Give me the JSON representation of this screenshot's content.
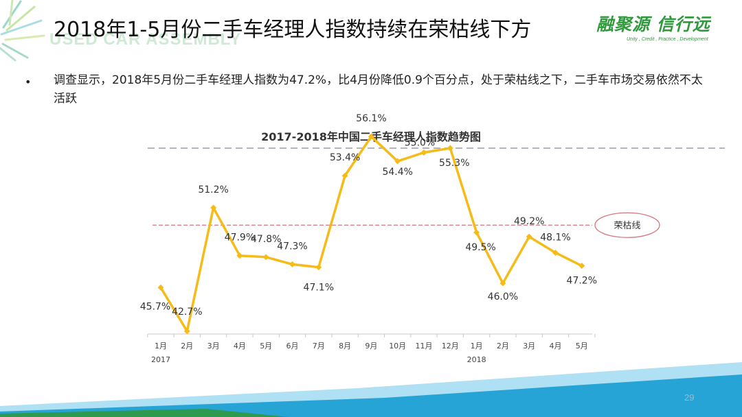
{
  "header": {
    "title": "2018年1-5月份二手车经理人指数持续在荣枯线下方",
    "watermark": "USED CAR ASSEMBLY",
    "logo_text": "融聚源 信行远",
    "logo_tagline": "Unity , Credit , Practice , Development"
  },
  "body": {
    "bullet": "调查显示，2018年5月份二手车经理人指数为47.2%，比4月份降低0.9个百分点，处于荣枯线之下，二手车市场交易依然不太活跃"
  },
  "footer": {
    "page_number": "29"
  },
  "colors": {
    "line": "#f5bb18",
    "threshold": "#d9737b",
    "band": "#26a4d6",
    "band_light": "#8fd3ee"
  },
  "chart_data": {
    "type": "line",
    "title": "2017-2018年中国二手车经理人指数趋势图",
    "categories": [
      "1月",
      "2月",
      "3月",
      "4月",
      "5月",
      "6月",
      "7月",
      "8月",
      "9月",
      "10月",
      "11月",
      "12月",
      "1月",
      "2月",
      "3月",
      "4月",
      "5月"
    ],
    "year_labels": [
      {
        "at_index": 0,
        "label": "2017"
      },
      {
        "at_index": 12,
        "label": "2018"
      }
    ],
    "series": [
      {
        "values": [
          45.7,
          42.7,
          51.2,
          47.9,
          47.8,
          47.3,
          47.1,
          53.4,
          56.1,
          54.4,
          55.0,
          55.3,
          49.5,
          46.0,
          49.2,
          48.1,
          47.2
        ],
        "labels": [
          "45.7%",
          "42.7%",
          "51.2%",
          "47.9%",
          "47.8%",
          "47.3%",
          "47.1%",
          "53.4%",
          "56.1%",
          "54.4%",
          "55.0%",
          "55.3%",
          "49.5%",
          "46.0%",
          "49.2%",
          "48.1%",
          "47.2%"
        ]
      }
    ],
    "threshold": {
      "value": 50,
      "label": "荣枯线"
    },
    "ylim": [
      40,
      57
    ],
    "xlabel": "",
    "ylabel": "",
    "grid": false
  }
}
